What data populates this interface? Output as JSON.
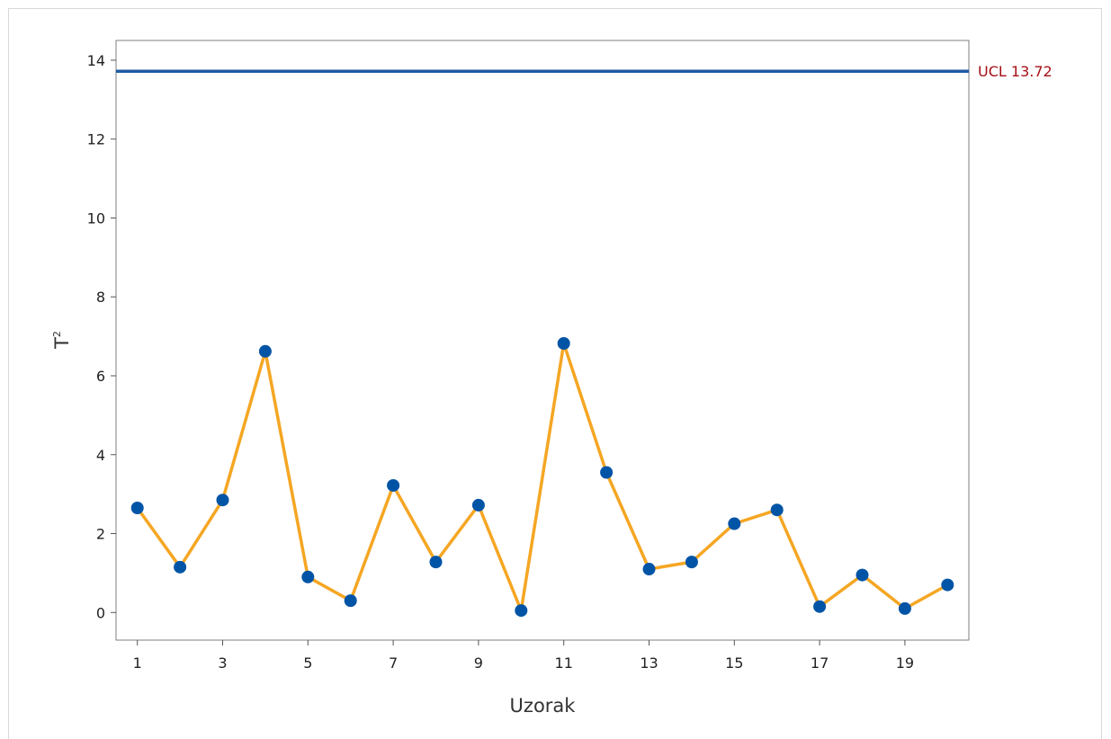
{
  "chart_data": {
    "type": "line",
    "xlabel": "Uzorak",
    "ylabel": "T",
    "ylabel_superscript": "2",
    "xlim": [
      0.5,
      20.5
    ],
    "ylim": [
      -0.7,
      14.5
    ],
    "x_ticks": [
      1,
      3,
      5,
      7,
      9,
      11,
      13,
      15,
      17,
      19
    ],
    "y_ticks": [
      0,
      2,
      4,
      6,
      8,
      10,
      12,
      14
    ],
    "x": [
      1,
      2,
      3,
      4,
      5,
      6,
      7,
      8,
      9,
      10,
      11,
      12,
      13,
      14,
      15,
      16,
      17,
      18,
      19,
      20
    ],
    "series": [
      {
        "values": [
          2.65,
          1.15,
          2.85,
          6.62,
          0.9,
          0.3,
          3.22,
          1.28,
          2.72,
          0.05,
          6.82,
          3.55,
          1.1,
          1.28,
          2.25,
          2.6,
          0.15,
          0.95,
          0.1,
          0.7
        ],
        "line_color": "#f5a623",
        "marker_color": "#0054a6"
      }
    ],
    "control_limit": {
      "value": 13.72,
      "label": "UCL 13.72",
      "color": "#1f5aa6",
      "label_color": "#a50f15"
    },
    "grid": false
  }
}
